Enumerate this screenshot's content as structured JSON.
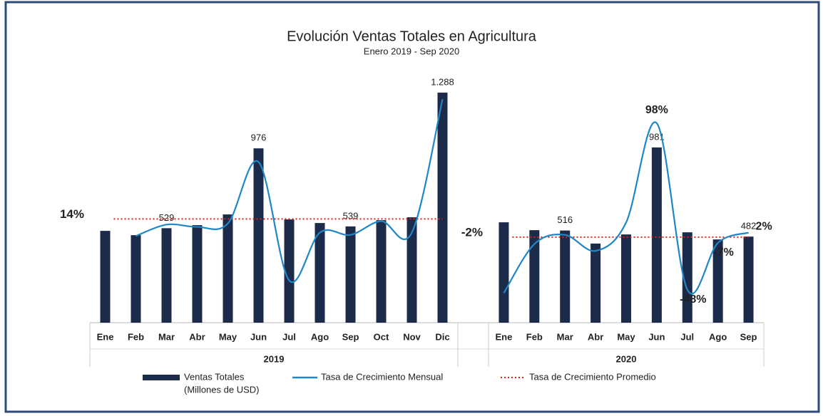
{
  "chart_data": {
    "type": "bar",
    "title": "Evolución Ventas Totales en Agricultura",
    "subtitle": "Enero 2019 - Sep 2020",
    "ylim": [
      0,
      1328
    ],
    "y2lim": [
      -77,
      131
    ],
    "series": [
      {
        "name": "Ventas Totales",
        "note": "(Millones de USD)",
        "type": "bar",
        "color": "#1c2b4a"
      },
      {
        "name": "Tasa de Crecimiento Mensual",
        "type": "line",
        "color": "#1f87c7",
        "axis": "y2"
      },
      {
        "name": "Tasa de Crecimiento Promedio",
        "type": "dotted",
        "color": "#e0201b",
        "axis": "y2"
      }
    ],
    "panels": [
      {
        "label": "2019",
        "categories": [
          "Ene",
          "Feb",
          "Mar",
          "Abr",
          "May",
          "Jun",
          "Jul",
          "Ago",
          "Sep",
          "Oct",
          "Nov",
          "Dic"
        ],
        "bars": [
          514,
          490,
          529,
          546,
          606,
          976,
          578,
          558,
          539,
          574,
          590,
          1288
        ],
        "bar_labels": [
          null,
          null,
          "529",
          null,
          null,
          "976",
          null,
          null,
          "539",
          null,
          null,
          "1.288"
        ],
        "growth": [
          null,
          -1,
          9,
          7,
          10,
          64,
          -40,
          2,
          0,
          12,
          2,
          119
        ],
        "growth_labels": [
          null,
          null,
          null,
          null,
          null,
          null,
          null,
          null,
          null,
          null,
          null,
          null
        ],
        "average": 14,
        "average_label": "14%"
      },
      {
        "label": "2020",
        "categories": [
          "Ene",
          "Feb",
          "Mar",
          "Abr",
          "May",
          "Jun",
          "Jul",
          "Ago",
          "Sep"
        ],
        "bars": [
          562,
          518,
          516,
          443,
          494,
          981,
          506,
          466,
          482
        ],
        "bar_labels": [
          null,
          null,
          "516",
          null,
          null,
          "981",
          null,
          null,
          "482"
        ],
        "growth": [
          -51,
          -8,
          0,
          -14,
          11,
          98,
          -48,
          -7,
          2
        ],
        "growth_labels": [
          null,
          null,
          null,
          null,
          null,
          "98%",
          "-48%",
          "-7%",
          "2%"
        ],
        "average": -2,
        "average_label": "-2%"
      }
    ]
  }
}
